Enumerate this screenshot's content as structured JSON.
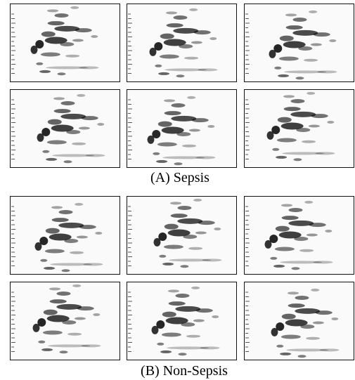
{
  "captions": [
    "(A) Sepsis",
    "(B) Non-Sepsis"
  ]
}
